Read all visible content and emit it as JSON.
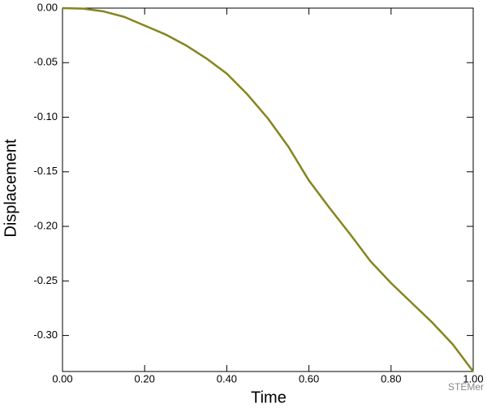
{
  "chart_data": {
    "type": "line",
    "x_label": "Time",
    "y_label": "Displacement",
    "annotation": "STEMer",
    "x": [
      0,
      0.05,
      0.1,
      0.15,
      0.2,
      0.25,
      0.3,
      0.35,
      0.4,
      0.45,
      0.5,
      0.55,
      0.6,
      0.65,
      0.7,
      0.75,
      0.8,
      0.85,
      0.9,
      0.95,
      1.0
    ],
    "values": [
      0,
      -0.0005,
      -0.003,
      -0.008,
      -0.016,
      -0.024,
      -0.034,
      -0.046,
      -0.06,
      -0.079,
      -0.101,
      -0.127,
      -0.158,
      -0.183,
      -0.207,
      -0.232,
      -0.252,
      -0.27,
      -0.288,
      -0.308,
      -0.333
    ],
    "color": "#85851f",
    "xlim": [
      0,
      1
    ],
    "ylim": [
      -0.333,
      0
    ],
    "xticks": [
      {
        "value": 0,
        "label": "0.00"
      },
      {
        "value": 0.2,
        "label": "0.20"
      },
      {
        "value": 0.4,
        "label": "0.40"
      },
      {
        "value": 0.6,
        "label": "0.60"
      },
      {
        "value": 0.8,
        "label": "0.80"
      },
      {
        "value": 1,
        "label": "1.00"
      }
    ],
    "yticks": [
      {
        "value": 0,
        "label": "0.00"
      },
      {
        "value": -0.05,
        "label": "-0.05"
      },
      {
        "value": -0.1,
        "label": "-0.10"
      },
      {
        "value": -0.15,
        "label": "-0.15"
      },
      {
        "value": -0.2,
        "label": "-0.20"
      },
      {
        "value": -0.25,
        "label": "-0.25"
      },
      {
        "value": -0.3,
        "label": "-0.30"
      }
    ]
  }
}
